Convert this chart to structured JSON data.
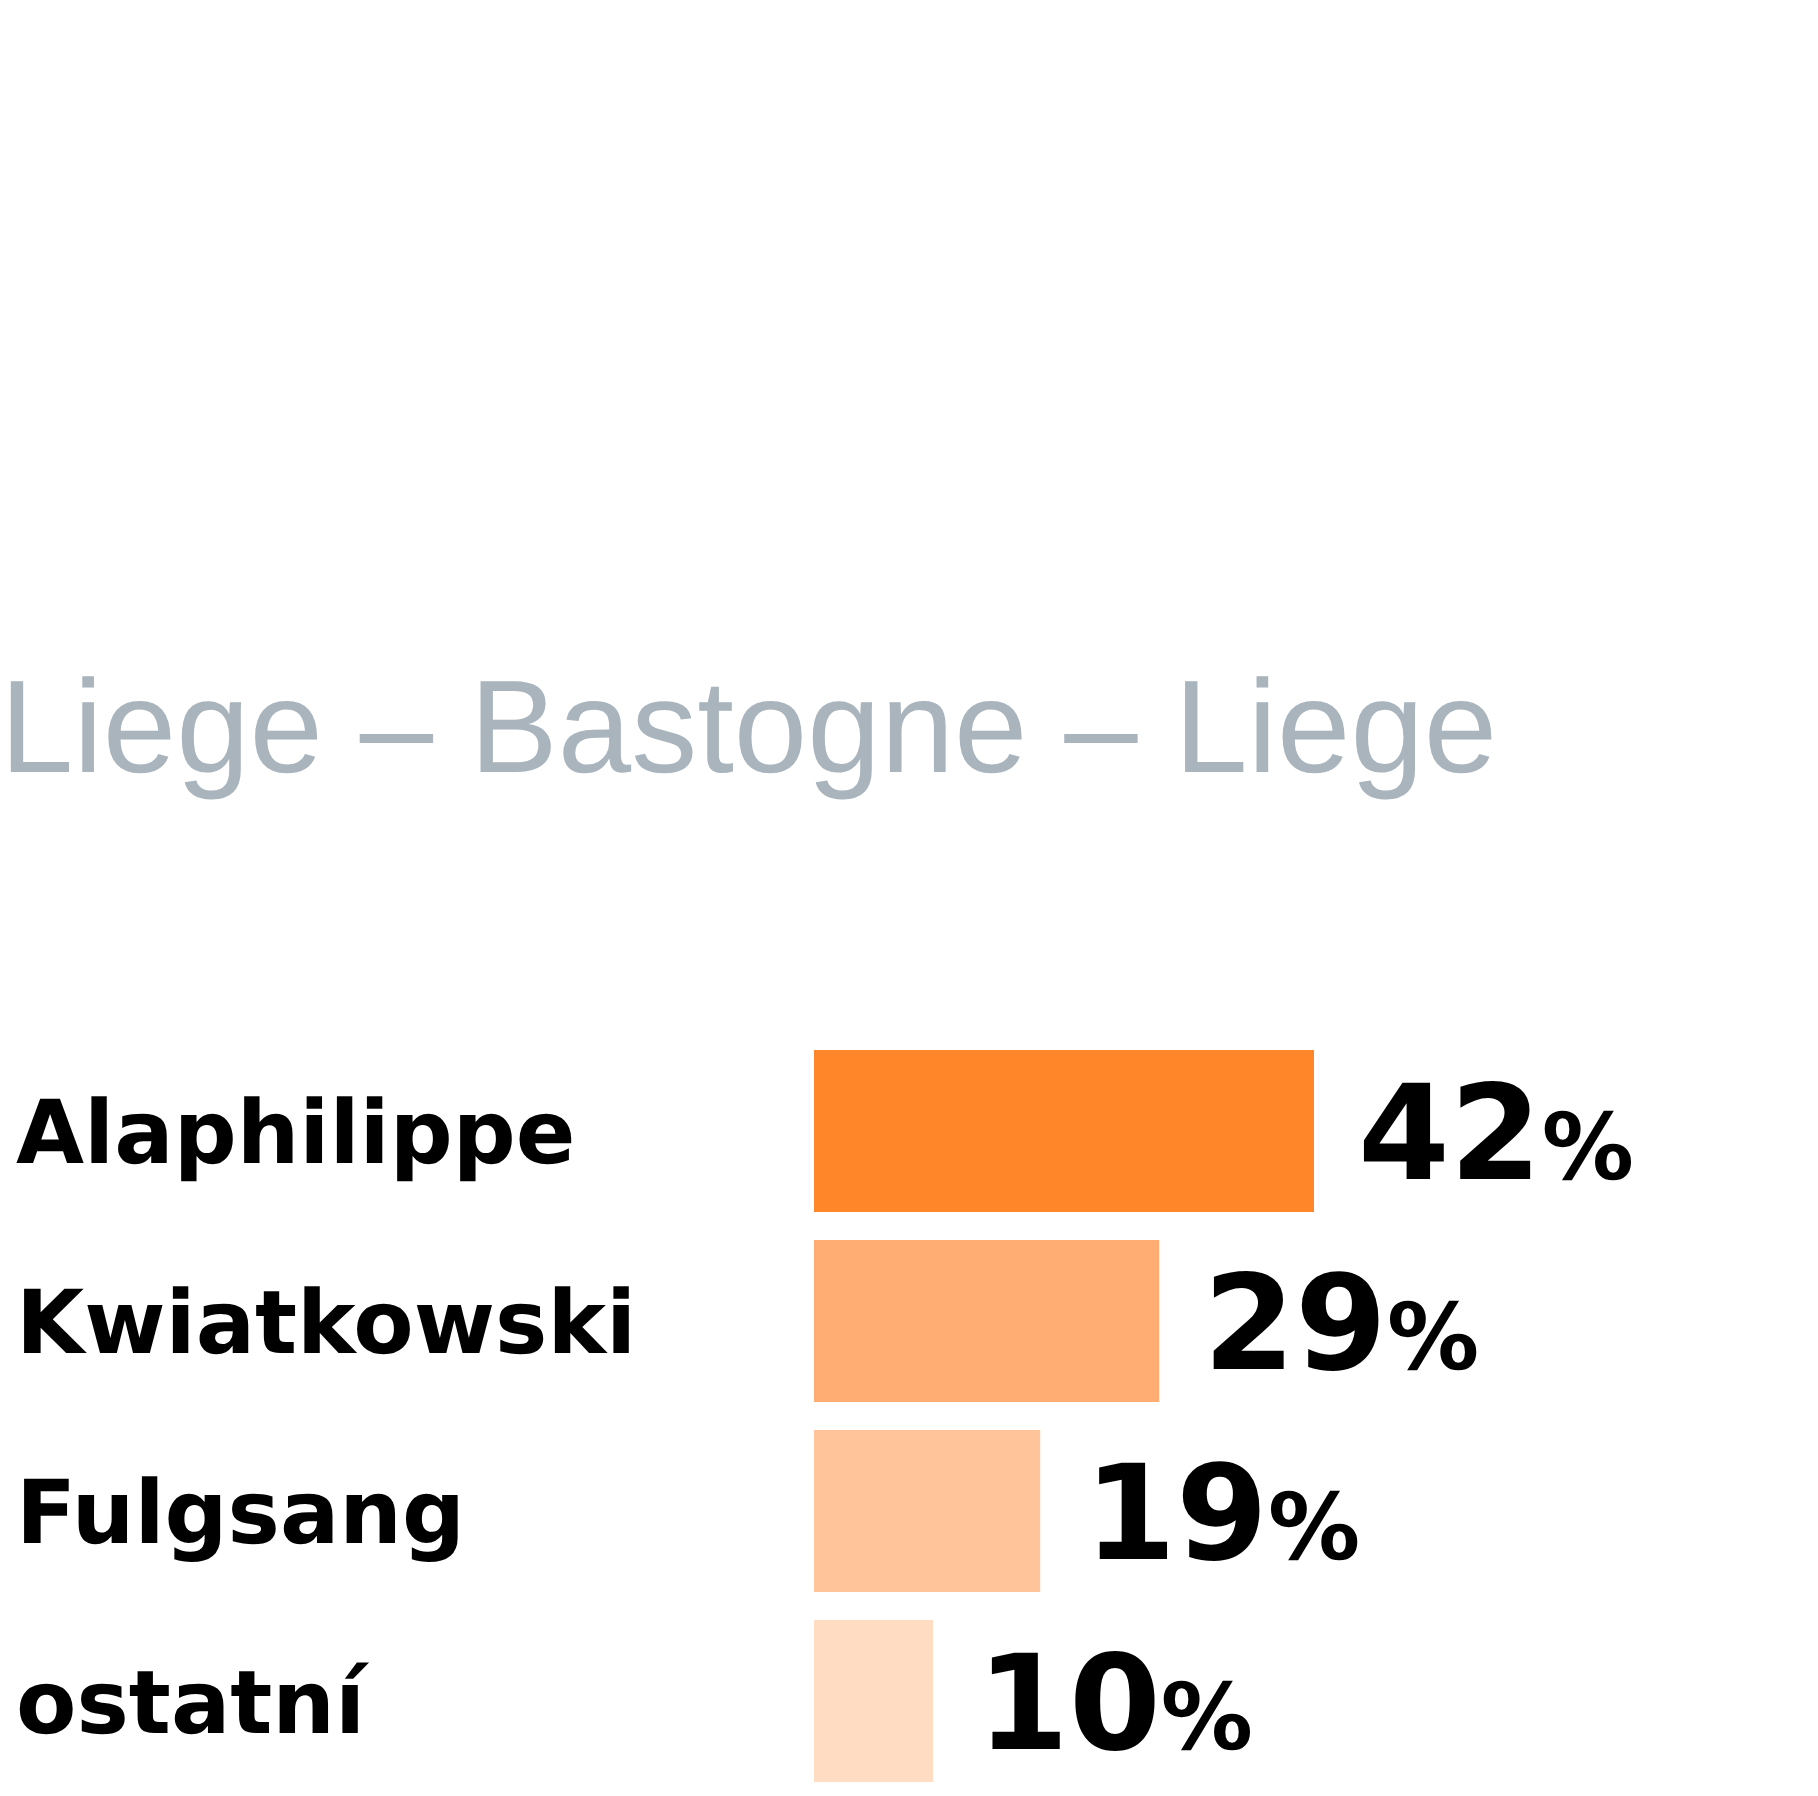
{
  "chart_data": {
    "type": "bar",
    "orientation": "horizontal",
    "title": "Liege – Bastogne – Liege",
    "categories": [
      "Alaphilippe",
      "Kwiatkowski",
      "Fulgsang",
      "ostatní"
    ],
    "values": [
      42,
      29,
      19,
      10
    ],
    "colors": [
      "#ff8629",
      "#ffad72",
      "#ffc499",
      "#ffdcc2"
    ],
    "value_labels": [
      "42%",
      "29%",
      "19%",
      "10%"
    ]
  }
}
